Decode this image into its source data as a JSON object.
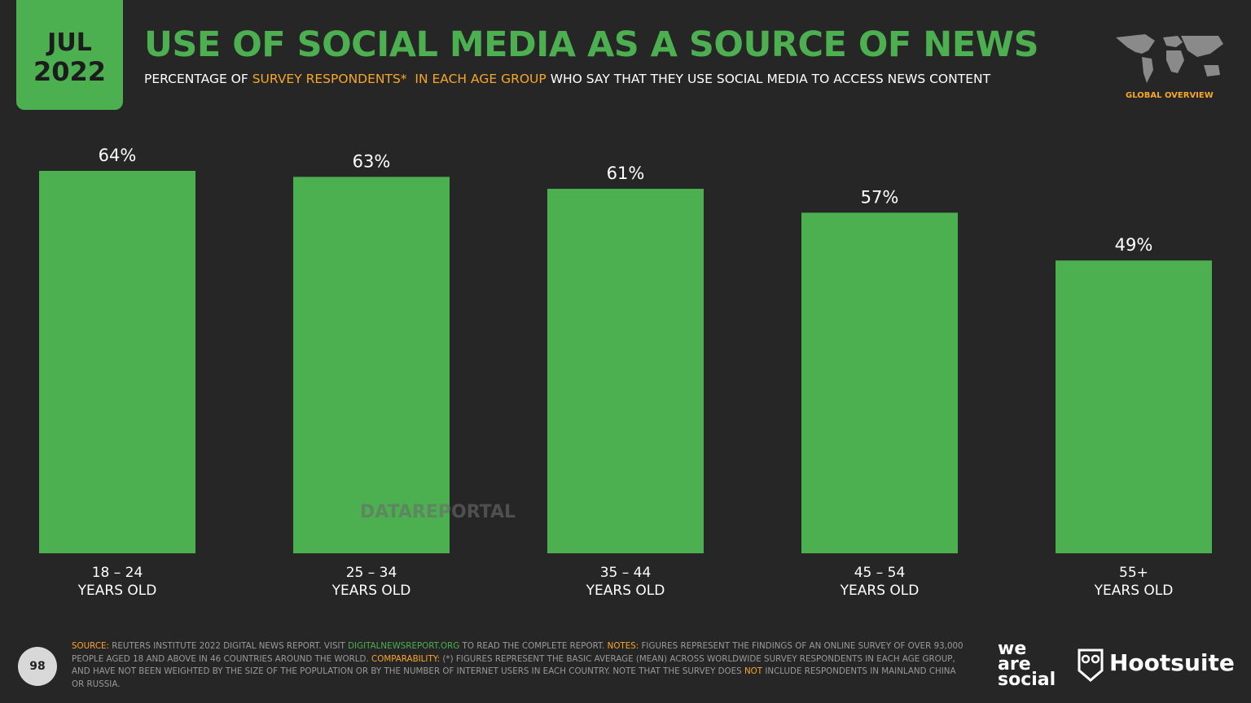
{
  "chart_data": {
    "type": "bar",
    "title": "USE OF SOCIAL MEDIA AS A SOURCE OF NEWS",
    "subtitle": [
      {
        "text": "PERCENTAGE OF ",
        "color": "#ffffff"
      },
      {
        "text": "SURVEY RESPONDENTS*  IN EACH AGE GROUP",
        "color": "#f7a823"
      },
      {
        "text": " WHO SAY THAT THEY USE SOCIAL MEDIA TO ACCESS NEWS CONTENT",
        "color": "#ffffff"
      }
    ],
    "categories": [
      [
        "18 – 24",
        "YEARS OLD"
      ],
      [
        "25 – 34",
        "YEARS OLD"
      ],
      [
        "35 – 44",
        "YEARS OLD"
      ],
      [
        "45 – 54",
        "YEARS OLD"
      ],
      [
        "55+",
        "YEARS OLD"
      ]
    ],
    "values": [
      64,
      63,
      61,
      57,
      49
    ],
    "value_labels": [
      "64%",
      "63%",
      "61%",
      "57%",
      "49%"
    ],
    "color": "#4caf50"
  },
  "slide": {
    "month": "JUL",
    "year": "2022",
    "section": "GLOBAL OVERVIEW",
    "watermark": "DATAREPORTAL",
    "page": "98",
    "logo_wearesocial": [
      "we",
      "are",
      "social"
    ],
    "logo_hootsuite": "Hootsuite",
    "footer": [
      {
        "text": "SOURCE:",
        "color": "#f7a823"
      },
      {
        "text": " REUTERS INSTITUTE 2022 DIGITAL NEWS REPORT. VISIT ",
        "color": "#9a9a9a"
      },
      {
        "text": "DIGITALNEWSREPORT.ORG",
        "color": "#4caf50"
      },
      {
        "text": " TO READ THE COMPLETE REPORT. ",
        "color": "#9a9a9a"
      },
      {
        "text": "NOTES:",
        "color": "#f7a823"
      },
      {
        "text": " FIGURES REPRESENT THE FINDINGS OF AN ONLINE SURVEY OF OVER 93,000 PEOPLE AGED 18 AND ABOVE IN 46 COUNTRIES AROUND THE WORLD. ",
        "color": "#9a9a9a"
      },
      {
        "text": "COMPARABILITY:",
        "color": "#f7a823"
      },
      {
        "text": " (*) FIGURES REPRESENT THE BASIC AVERAGE (MEAN) ACROSS WORLDWIDE SURVEY RESPONDENTS IN EACH AGE GROUP, AND HAVE NOT BEEN WEIGHTED BY THE SIZE OF THE POPULATION OR BY THE NUMBER OF INTERNET USERS IN EACH COUNTRY. NOTE THAT THE SURVEY DOES ",
        "color": "#9a9a9a"
      },
      {
        "text": "NOT",
        "color": "#f7a823"
      },
      {
        "text": " INCLUDE RESPONDENTS IN MAINLAND CHINA OR RUSSIA.",
        "color": "#9a9a9a"
      }
    ]
  }
}
